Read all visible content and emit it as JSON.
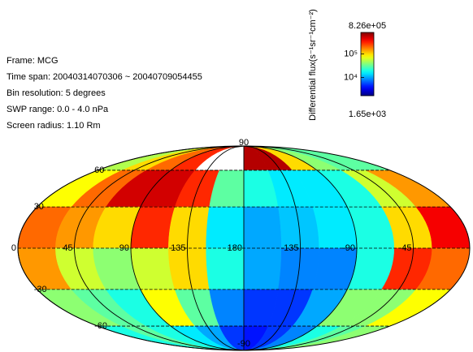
{
  "chart_data": {
    "type": "heatmap",
    "projection": "mollweide",
    "info": [
      "Frame: MCG",
      "Time span: 20040314070306 ~ 20040709054455",
      "Bin resolution: 5 degrees",
      "SWP range: 0.0 - 4.0 nPa",
      "Screen radius: 1.10 Rm"
    ],
    "colorbar": {
      "label": "Differential flux(s⁻¹sr⁻¹cm⁻²)",
      "max_label": "8.26e+05",
      "min_label": "1.65e+03",
      "clim": [
        1650,
        826000
      ],
      "log": true,
      "ticks": [
        {
          "value": 100000,
          "label": "10⁵"
        },
        {
          "value": 10000,
          "label": "10⁴"
        }
      ]
    },
    "xticks": [
      0,
      45,
      90,
      135,
      180,
      -135,
      -90,
      -45
    ],
    "yticks": [
      90,
      60,
      30,
      -30,
      -60,
      -90
    ],
    "lon_edges": [
      0,
      30,
      60,
      90,
      120,
      150,
      180,
      210,
      240,
      270,
      300,
      330,
      360
    ],
    "lat_edges": [
      90,
      60,
      30,
      0,
      -30,
      -60,
      -90
    ],
    "values": [
      [
        50000,
        100000,
        200000,
        300000,
        null,
        null,
        600000,
        600000,
        100000,
        40000,
        30000,
        30000
      ],
      [
        80000,
        200000,
        500000,
        500000,
        300000,
        30000,
        20000,
        15000,
        15000,
        20000,
        60000,
        150000
      ],
      [
        200000,
        150000,
        100000,
        300000,
        100000,
        15000,
        10000,
        12000,
        15000,
        20000,
        100000,
        400000
      ],
      [
        150000,
        60000,
        40000,
        60000,
        100000,
        20000,
        10000,
        8000,
        8000,
        20000,
        300000,
        200000
      ],
      [
        40000,
        30000,
        20000,
        80000,
        30000,
        8000,
        5000,
        5000,
        10000,
        40000,
        40000,
        80000
      ],
      [
        20000,
        30000,
        20000,
        15000,
        10000,
        5000,
        4000,
        5000,
        8000,
        20000,
        30000,
        40000
      ]
    ]
  }
}
